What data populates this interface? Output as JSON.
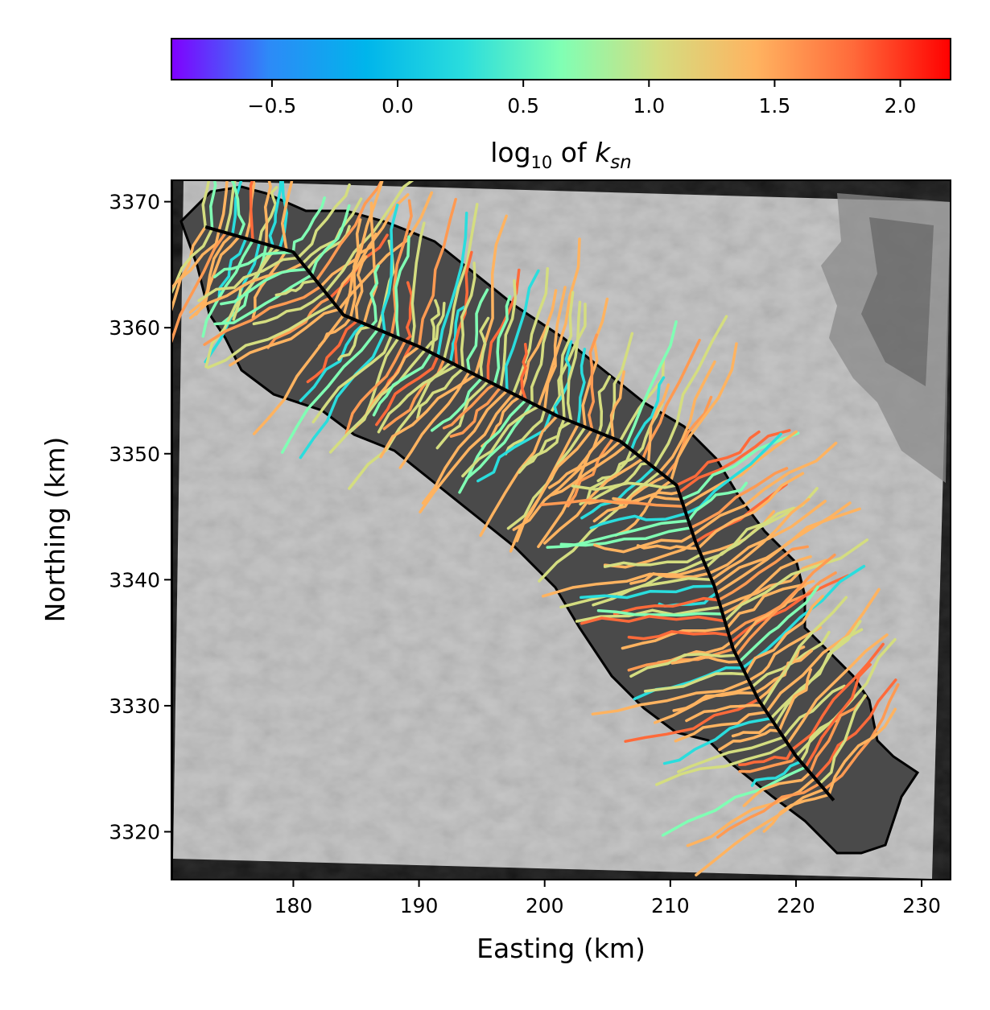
{
  "chart_data": {
    "type": "heatmap",
    "title": "",
    "xlabel": "Easting (km)",
    "ylabel": "Northing (km)",
    "xlim": [
      170.3,
      232.3
    ],
    "ylim": [
      3316.2,
      3371.7
    ],
    "xticks": [
      180,
      190,
      200,
      210,
      220,
      230
    ],
    "xtick_labels": [
      "180",
      "190",
      "200",
      "210",
      "220",
      "230"
    ],
    "yticks": [
      3320,
      3330,
      3340,
      3350,
      3360,
      3370
    ],
    "ytick_labels": [
      "3320",
      "3330",
      "3340",
      "3350",
      "3360",
      "3370"
    ],
    "background": "shaded-relief hillshade (grayscale)",
    "overlay": "channel network colored by log10 of ksn; basin outlines in black",
    "trunk_channel": [
      {
        "x": 173.0,
        "y": 3368.0
      },
      {
        "x": 180.0,
        "y": 3366.0
      },
      {
        "x": 184.0,
        "y": 3361.0
      },
      {
        "x": 190.0,
        "y": 3358.5
      },
      {
        "x": 196.0,
        "y": 3355.5
      },
      {
        "x": 201.0,
        "y": 3353.0
      },
      {
        "x": 206.0,
        "y": 3351.0
      },
      {
        "x": 210.5,
        "y": 3347.5
      },
      {
        "x": 212.0,
        "y": 3343.0
      },
      {
        "x": 213.5,
        "y": 3339.5
      },
      {
        "x": 215.0,
        "y": 3334.5
      },
      {
        "x": 217.0,
        "y": 3330.5
      },
      {
        "x": 220.0,
        "y": 3326.0
      },
      {
        "x": 223.0,
        "y": 3322.5
      }
    ],
    "colorbar": {
      "label_text": "log",
      "label_sub": "10",
      "label_of": " of ",
      "label_var": "k",
      "label_var_sub": "sn",
      "cmap": "rainbow",
      "vmin": -0.9,
      "vmax": 2.2,
      "ticks": [
        -0.5,
        0.0,
        0.5,
        1.0,
        1.5,
        2.0
      ],
      "tick_labels": [
        "−0.5",
        "0.0",
        "0.5",
        "1.0",
        "1.5",
        "2.0"
      ],
      "colors": [
        "#8000ff",
        "#2d8af7",
        "#00b5eb",
        "#2adddd",
        "#80ffb4",
        "#d4dd80",
        "#ffb360",
        "#ff6a3a",
        "#ff0000"
      ]
    }
  }
}
